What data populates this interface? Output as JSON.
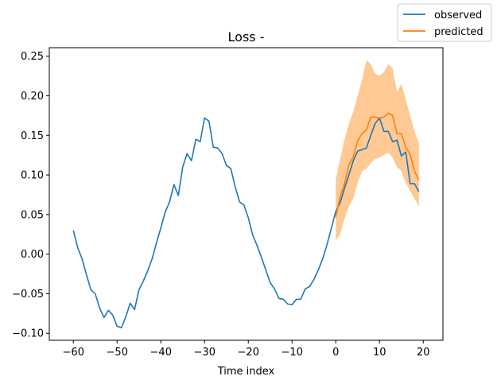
{
  "chart_data": {
    "type": "line",
    "title": "Loss -",
    "xlabel": "Time index",
    "ylabel": "",
    "xlim": [
      -65.5,
      24.5
    ],
    "ylim": [
      -0.1088,
      0.2607
    ],
    "xticks": [
      -60,
      -50,
      -40,
      -30,
      -20,
      -10,
      0,
      10,
      20
    ],
    "xtick_labels": [
      "−60",
      "−50",
      "−40",
      "−30",
      "−20",
      "−10",
      "0",
      "10",
      "20"
    ],
    "yticks": [
      -0.1,
      -0.05,
      0.0,
      0.05,
      0.1,
      0.15,
      0.2,
      0.25
    ],
    "ytick_labels": [
      "−0.10",
      "−0.05",
      "0.00",
      "0.05",
      "0.10",
      "0.15",
      "0.20",
      "0.25"
    ],
    "grid": false,
    "legend": {
      "placement": "top-right (outside axes)",
      "entries": [
        "observed",
        "predicted"
      ]
    },
    "colors": {
      "observed": "#1f77b4",
      "predicted": "#ff7f0e",
      "band": "#ffbb78"
    },
    "series": [
      {
        "name": "observed",
        "x": [
          -60,
          -59,
          -58,
          -57,
          -56,
          -55,
          -54,
          -53,
          -52,
          -51,
          -50,
          -49,
          -48,
          -47,
          -46,
          -45,
          -44,
          -43,
          -42,
          -41,
          -40,
          -39,
          -38,
          -37,
          -36,
          -35,
          -34,
          -33,
          -32,
          -31,
          -30,
          -29,
          -28,
          -27,
          -26,
          -25,
          -24,
          -23,
          -22,
          -21,
          -20,
          -19,
          -18,
          -17,
          -16,
          -15,
          -14,
          -13,
          -12,
          -11,
          -10,
          -9,
          -8,
          -7,
          -6,
          -5,
          -4,
          -3,
          -2,
          -1,
          0,
          1,
          2,
          3,
          4,
          5,
          6,
          7,
          8,
          9,
          10,
          11,
          12,
          13,
          14,
          15,
          16,
          17,
          18,
          19
        ],
        "values": [
          0.03,
          0.008,
          -0.006,
          -0.026,
          -0.045,
          -0.05,
          -0.068,
          -0.08,
          -0.071,
          -0.077,
          -0.091,
          -0.093,
          -0.079,
          -0.062,
          -0.07,
          -0.045,
          -0.034,
          -0.021,
          -0.006,
          0.014,
          0.033,
          0.053,
          0.066,
          0.088,
          0.074,
          0.11,
          0.127,
          0.118,
          0.145,
          0.142,
          0.172,
          0.168,
          0.135,
          0.134,
          0.127,
          0.112,
          0.108,
          0.085,
          0.066,
          0.062,
          0.046,
          0.024,
          0.011,
          -0.004,
          -0.02,
          -0.036,
          -0.044,
          -0.056,
          -0.057,
          -0.063,
          -0.064,
          -0.057,
          -0.057,
          -0.044,
          -0.041,
          -0.032,
          -0.02,
          -0.006,
          0.012,
          0.033,
          0.054,
          0.065,
          0.083,
          0.1,
          0.118,
          0.13,
          0.132,
          0.134,
          0.15,
          0.165,
          0.172,
          0.155,
          0.155,
          0.142,
          0.144,
          0.124,
          0.129,
          0.089,
          0.089,
          0.079
        ]
      },
      {
        "name": "predicted",
        "x": [
          0,
          1,
          2,
          3,
          4,
          5,
          6,
          7,
          8,
          9,
          10,
          11,
          12,
          13,
          14,
          15,
          16,
          17,
          18,
          19
        ],
        "values": [
          0.047,
          0.073,
          0.089,
          0.113,
          0.123,
          0.143,
          0.152,
          0.157,
          0.173,
          0.173,
          0.172,
          0.173,
          0.178,
          0.175,
          0.152,
          0.152,
          0.135,
          0.126,
          0.105,
          0.093
        ],
        "lower": [
          0.017,
          0.025,
          0.045,
          0.06,
          0.07,
          0.09,
          0.105,
          0.108,
          0.115,
          0.12,
          0.122,
          0.125,
          0.128,
          0.122,
          0.11,
          0.105,
          0.09,
          0.08,
          0.07,
          0.06
        ],
        "upper": [
          0.095,
          0.12,
          0.145,
          0.165,
          0.18,
          0.2,
          0.22,
          0.245,
          0.24,
          0.228,
          0.225,
          0.23,
          0.24,
          0.235,
          0.205,
          0.215,
          0.195,
          0.175,
          0.155,
          0.14
        ]
      }
    ]
  }
}
